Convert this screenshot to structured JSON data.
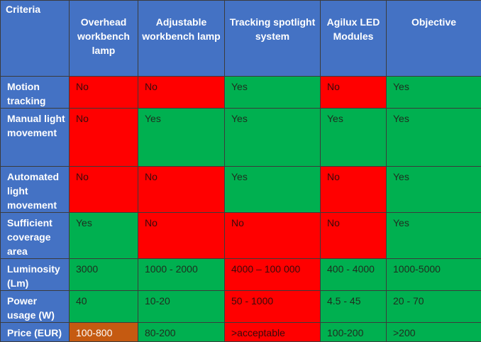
{
  "columns": [
    "Criteria",
    "Overhead workbench lamp",
    "Adjustable workbench lamp",
    "Tracking spotlight system",
    "Agilux  LED Modules",
    "Objective"
  ],
  "rows": [
    {
      "criterion": "Motion tracking",
      "values": [
        "No",
        "No",
        "Yes",
        "No",
        "Yes"
      ],
      "status": [
        "red",
        "red",
        "green",
        "red",
        "green"
      ]
    },
    {
      "criterion": "Manual light movement",
      "values": [
        "No",
        "Yes",
        "Yes",
        "Yes",
        "Yes"
      ],
      "status": [
        "red",
        "green",
        "green",
        "green",
        "green"
      ]
    },
    {
      "criterion": "Automated light movement",
      "values": [
        "No",
        "No",
        "Yes",
        "No",
        "Yes"
      ],
      "status": [
        "red",
        "red",
        "green",
        "red",
        "green"
      ]
    },
    {
      "criterion": "Sufficient coverage area",
      "values": [
        "Yes",
        "No",
        "No",
        "No",
        "Yes"
      ],
      "status": [
        "green",
        "red",
        "red",
        "red",
        "green"
      ]
    },
    {
      "criterion": "Luminosity (Lm)",
      "values": [
        "3000",
        "1000 - 2000",
        "4000 – 100 000",
        "400 - 4000",
        "1000-5000"
      ],
      "status": [
        "green",
        "green",
        "red",
        "green",
        "green"
      ]
    },
    {
      "criterion": "Power usage (W)",
      "values": [
        "40",
        "10-20",
        "50 - 1000",
        "4.5 - 45",
        "20 - 70"
      ],
      "status": [
        "green",
        "green",
        "red",
        "green",
        "green"
      ]
    },
    {
      "criterion": "Price (EUR)",
      "values": [
        "100-800",
        "80-200",
        ">acceptable",
        "100-200",
        ">200"
      ],
      "status": [
        "orange",
        "green",
        "red",
        "green",
        "green"
      ]
    }
  ],
  "colors": {
    "header": "#4472c4",
    "green": "#00b050",
    "red": "#ff0000",
    "orange": "#c55a11"
  }
}
